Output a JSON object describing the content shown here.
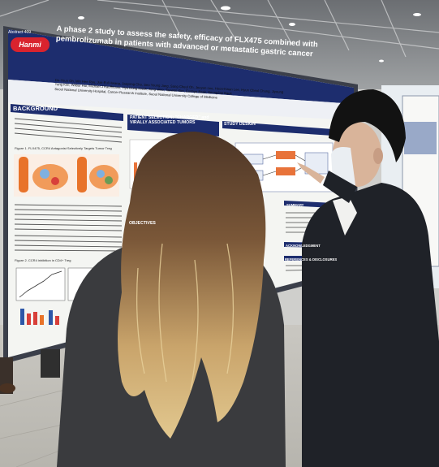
{
  "poster": {
    "abstract_id": "Abstract 409",
    "logo": "Hanmi",
    "title": "A phase 2 study to assess the safety, efficacy of FLX475 combined with pembrolizumab in patients with advanced or metastatic gastric cancer",
    "authors": "Do-Youn Oh, Min Hee Ryu, Jun-Eul Hwang, Jaeyong Cho, Seo Young Jang, Sang Cheul Oh, Jeeyun Lee, Hoon-Kwan Lee, Hyun Cheol Chung, Jiyoung Yang Kim, Wilbur Hui, Michael J Kauffmann, Hye Dong Kwak, Jung Woo, Taewon Kim, Eunhye Baek, SeungJae Baek",
    "affiliation": "Seoul National University Hospital, Cancer Research Institute, Seoul National University College of Medicine",
    "sections": {
      "background": "BACKGROUND",
      "patient_selection": "PATIENT SELECTION: \"CHARGED\" and VIRALLY ASSOCIATED TUMORS",
      "study_design": "STUDY DESIGN",
      "objectives": "OBJECTIVES",
      "summary": "SUMMARY",
      "acknowledgment": "ACKNOWLEDGMENT",
      "references": "REFERENCES & DISCLOSURES"
    },
    "figure_1_caption": "Figure 1. FLX475, CCR4 Antagonist Selectively Targets Tumor Treg",
    "figure_2_caption": "Figure 2. CCR4 inhibition in CD4+ Treg"
  }
}
